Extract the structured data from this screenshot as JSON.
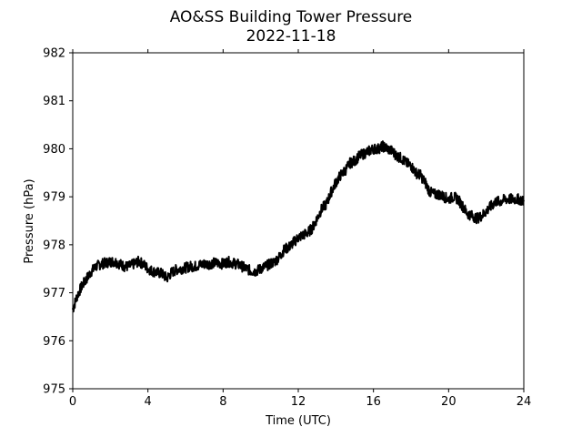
{
  "chart_data": {
    "type": "line",
    "title": "AO&SS Building Tower Pressure",
    "subtitle": "2022-11-18",
    "xlabel": "Time (UTC)",
    "ylabel": "Pressure (hPa)",
    "xlim": [
      0,
      24
    ],
    "ylim": [
      975,
      982
    ],
    "xticks": [
      0,
      4,
      8,
      12,
      16,
      20,
      24
    ],
    "yticks": [
      975,
      976,
      977,
      978,
      979,
      980,
      981,
      982
    ],
    "grid": false,
    "line_color": "#000000",
    "series": [
      {
        "x": [
          0,
          0.25,
          0.5,
          0.75,
          1,
          1.25,
          1.5,
          1.75,
          2,
          2.25,
          2.5,
          2.75,
          3,
          3.25,
          3.5,
          3.75,
          4,
          4.25,
          4.5,
          4.75,
          5,
          5.25,
          5.5,
          5.75,
          6,
          6.25,
          6.5,
          6.75,
          7,
          7.25,
          7.5,
          7.75,
          8,
          8.25,
          8.5,
          8.75,
          9,
          9.25,
          9.5,
          9.75,
          10,
          10.25,
          10.5,
          10.75,
          11,
          11.25,
          11.5,
          11.75,
          12,
          12.25,
          12.5,
          12.75,
          13,
          13.25,
          13.5,
          13.75,
          14,
          14.25,
          14.5,
          14.75,
          15,
          15.25,
          15.5,
          15.75,
          16,
          16.25,
          16.5,
          16.75,
          17,
          17.25,
          17.5,
          17.75,
          18,
          18.25,
          18.5,
          18.75,
          19,
          19.25,
          19.5,
          19.75,
          20,
          20.25,
          20.5,
          20.75,
          21,
          21.25,
          21.5,
          21.75,
          22,
          22.25,
          22.5,
          22.75,
          23,
          23.25,
          23.5,
          23.75,
          24
        ],
        "values": [
          976.65,
          976.95,
          977.15,
          977.3,
          977.45,
          977.55,
          977.6,
          977.62,
          977.65,
          977.65,
          977.6,
          977.55,
          977.55,
          977.6,
          977.65,
          977.6,
          977.5,
          977.45,
          977.42,
          977.4,
          977.3,
          977.42,
          977.48,
          977.5,
          977.52,
          977.55,
          977.55,
          977.58,
          977.6,
          977.6,
          977.62,
          977.62,
          977.6,
          977.65,
          977.62,
          977.6,
          977.55,
          977.5,
          977.45,
          977.45,
          977.5,
          977.55,
          977.6,
          977.65,
          977.75,
          977.9,
          977.95,
          978.05,
          978.15,
          978.2,
          978.25,
          978.35,
          978.55,
          978.75,
          978.85,
          979.1,
          979.3,
          979.45,
          979.55,
          979.7,
          979.75,
          979.85,
          979.9,
          979.95,
          980.0,
          980.0,
          980.05,
          980.0,
          979.95,
          979.85,
          979.8,
          979.7,
          979.65,
          979.5,
          979.45,
          979.3,
          979.1,
          979.05,
          979.05,
          979.0,
          978.95,
          979.0,
          978.95,
          978.8,
          978.65,
          978.6,
          978.55,
          978.6,
          978.7,
          978.8,
          978.9,
          978.9,
          978.95,
          978.95,
          978.95,
          978.95,
          978.9
        ]
      }
    ]
  }
}
